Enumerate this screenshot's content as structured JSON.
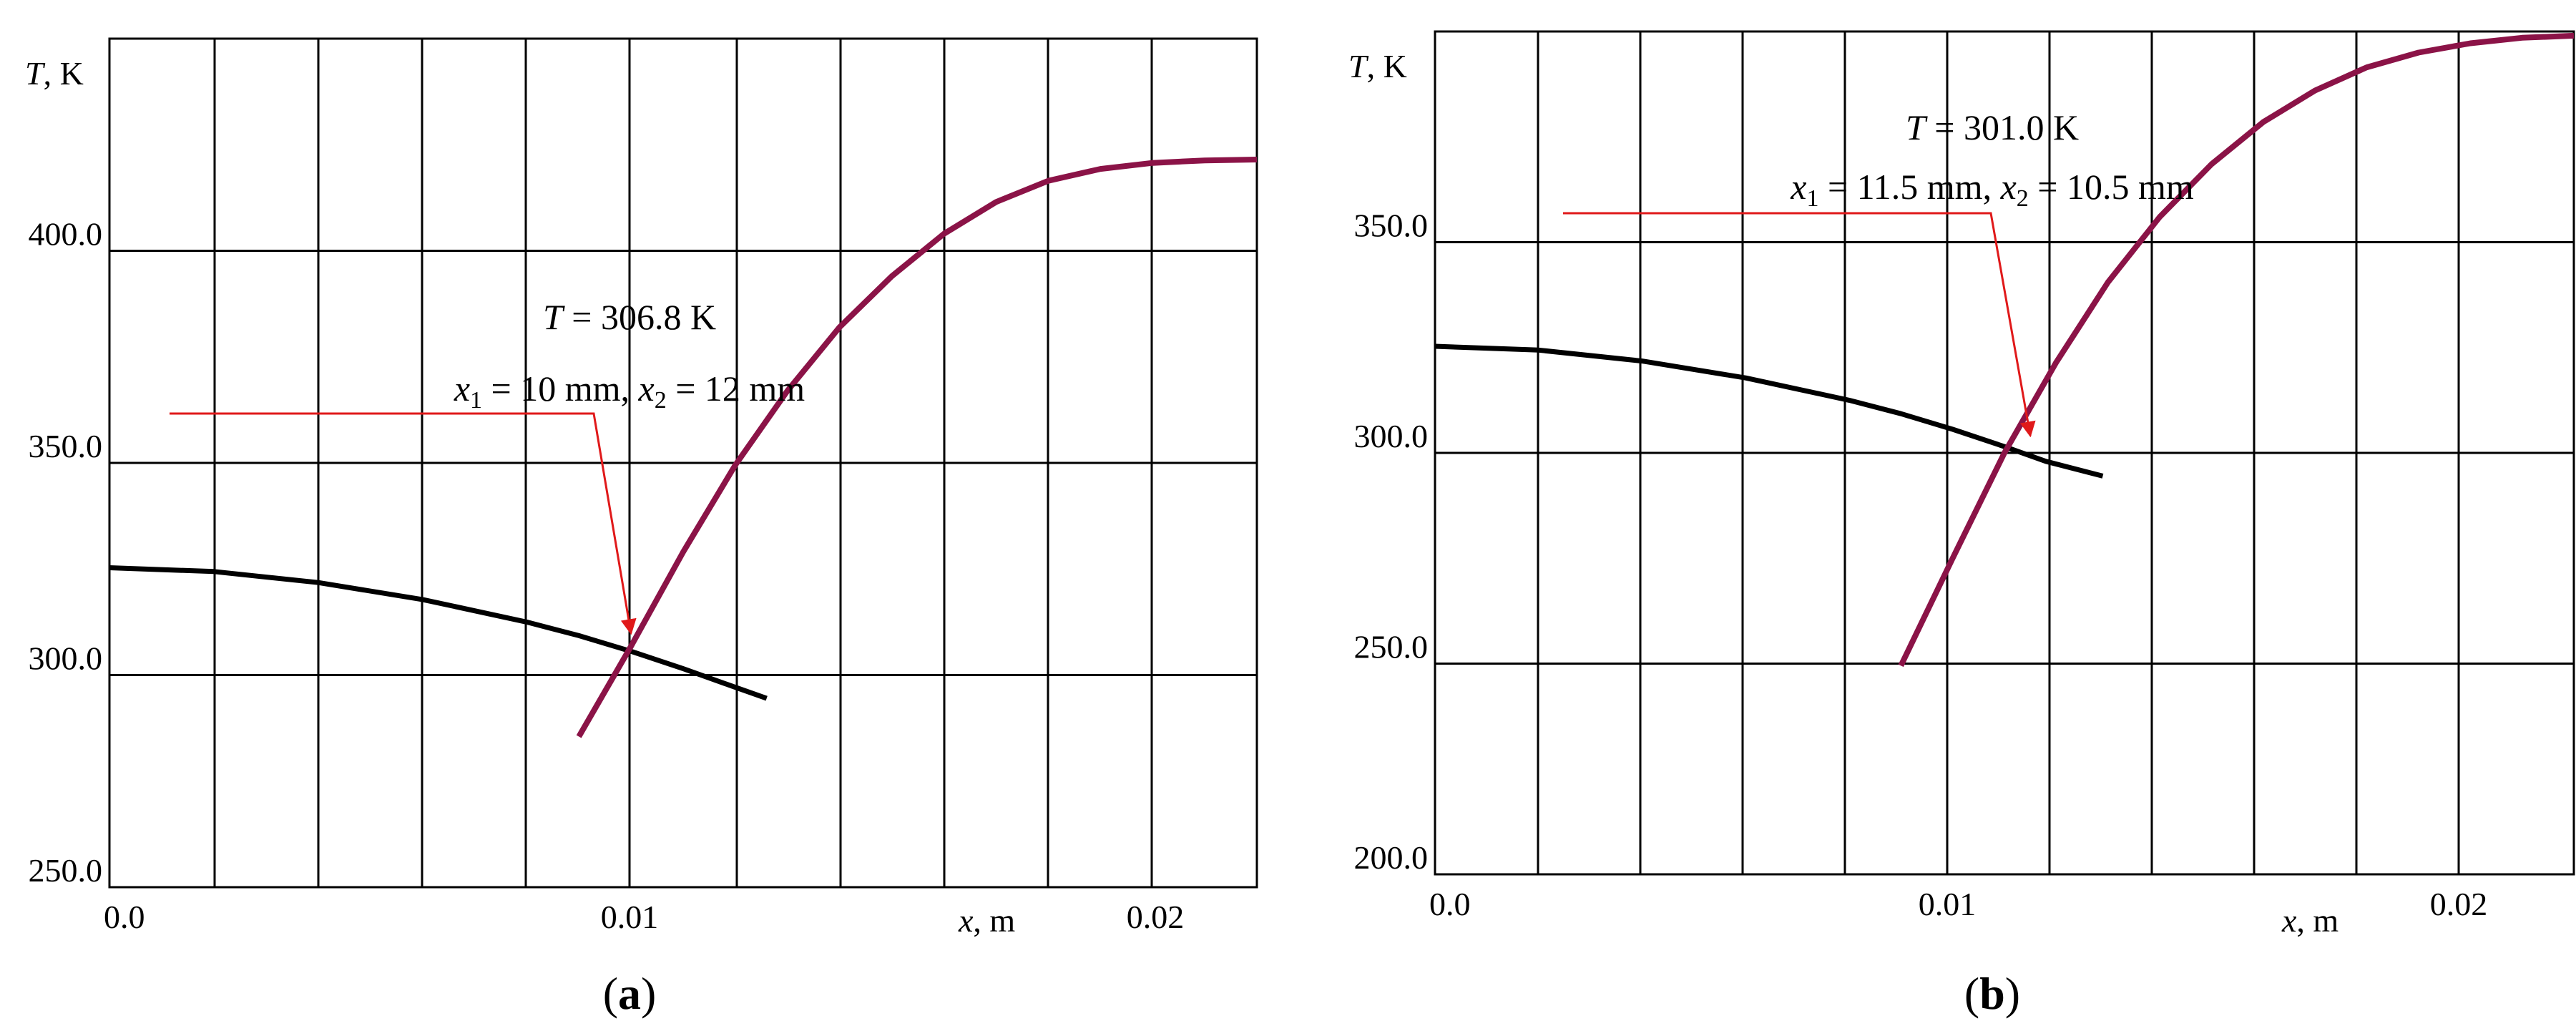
{
  "colors": {
    "series_1": "#000000",
    "series_2": "#8b1347",
    "annotation": "#e0191a",
    "grid": "#000000"
  },
  "chart_data": [
    {
      "type": "line",
      "panel_label": "a",
      "ylabel": {
        "var": "T",
        "unit": ", K"
      },
      "xlabel": {
        "var": "x",
        "unit": ", m"
      },
      "xlim": [
        0.0,
        0.022
      ],
      "ylim": [
        250.0,
        450.0
      ],
      "x_ticks": [
        {
          "v": 0.0,
          "t": "0.0"
        },
        {
          "v": 0.01,
          "t": "0.01"
        },
        {
          "v": 0.02,
          "t": "0.02"
        }
      ],
      "y_ticks": [
        {
          "v": 250,
          "t": "250.0"
        },
        {
          "v": 300,
          "t": "300.0"
        },
        {
          "v": 350,
          "t": "350.0"
        },
        {
          "v": 400,
          "t": "400.0"
        }
      ],
      "grid": true,
      "series": [
        {
          "color": "#000000",
          "x": [
            0.0,
            0.002,
            0.004,
            0.006,
            0.008,
            0.009,
            0.01,
            0.011,
            0.0118,
            0.0126
          ],
          "y": [
            325.3,
            324.4,
            321.8,
            317.8,
            312.5,
            309.3,
            305.6,
            301.5,
            298.0,
            294.5
          ]
        },
        {
          "color": "#8b1347",
          "x": [
            0.009,
            0.01,
            0.011,
            0.012,
            0.013,
            0.014,
            0.015,
            0.016,
            0.017,
            0.018,
            0.019,
            0.02,
            0.021,
            0.022
          ],
          "y": [
            285.5,
            306.8,
            329.0,
            349.5,
            367.0,
            382.0,
            394.0,
            404.0,
            411.5,
            416.5,
            419.3,
            420.7,
            421.3,
            421.5
          ]
        }
      ],
      "annotation": {
        "line1_var": "T",
        "line1_rest": " = 306.8 K",
        "x1_var": "x",
        "x1_sub": "1",
        "x1_rest": " = 10 mm, ",
        "x2_var": "x",
        "x2_sub": "2",
        "x2_rest": " = 12 mm",
        "target": {
          "x": 0.01,
          "y": 306.8
        }
      }
    },
    {
      "type": "line",
      "panel_label": "b",
      "ylabel": {
        "var": "T",
        "unit": ", K"
      },
      "xlabel": {
        "var": "x",
        "unit": ", m"
      },
      "xlim": [
        0.0,
        0.022
      ],
      "ylim": [
        200.0,
        400.0
      ],
      "x_ticks": [
        {
          "v": 0.0,
          "t": "0.0"
        },
        {
          "v": 0.01,
          "t": "0.01"
        },
        {
          "v": 0.02,
          "t": "0.02"
        }
      ],
      "y_ticks": [
        {
          "v": 200,
          "t": "200.0"
        },
        {
          "v": 250,
          "t": "250.0"
        },
        {
          "v": 300,
          "t": "300.0"
        },
        {
          "v": 350,
          "t": "350.0"
        }
      ],
      "grid": true,
      "series": [
        {
          "color": "#000000",
          "x": [
            0.0,
            0.002,
            0.004,
            0.006,
            0.008,
            0.009,
            0.01,
            0.011,
            0.0118,
            0.0129
          ],
          "y": [
            325.3,
            324.4,
            321.8,
            317.8,
            312.5,
            309.3,
            305.6,
            301.5,
            298.0,
            294.5
          ]
        },
        {
          "color": "#8b1347",
          "x": [
            0.009,
            0.01,
            0.011,
            0.012,
            0.013,
            0.014,
            0.015,
            0.016,
            0.017,
            0.018,
            0.019,
            0.02,
            0.021,
            0.022
          ],
          "y": [
            249.5,
            275.0,
            300.0,
            321.5,
            340.5,
            356.0,
            368.5,
            378.5,
            386.0,
            391.5,
            395.0,
            397.2,
            398.5,
            399.0
          ]
        }
      ],
      "annotation": {
        "line1_var": "T",
        "line1_rest": " = 301.0 K",
        "x1_var": "x",
        "x1_sub": "1",
        "x1_rest": " = 11.5 mm, ",
        "x2_var": "x",
        "x2_sub": "2",
        "x2_rest": " = 10.5 mm",
        "target": {
          "x": 0.0115,
          "y": 301.0
        }
      }
    }
  ]
}
